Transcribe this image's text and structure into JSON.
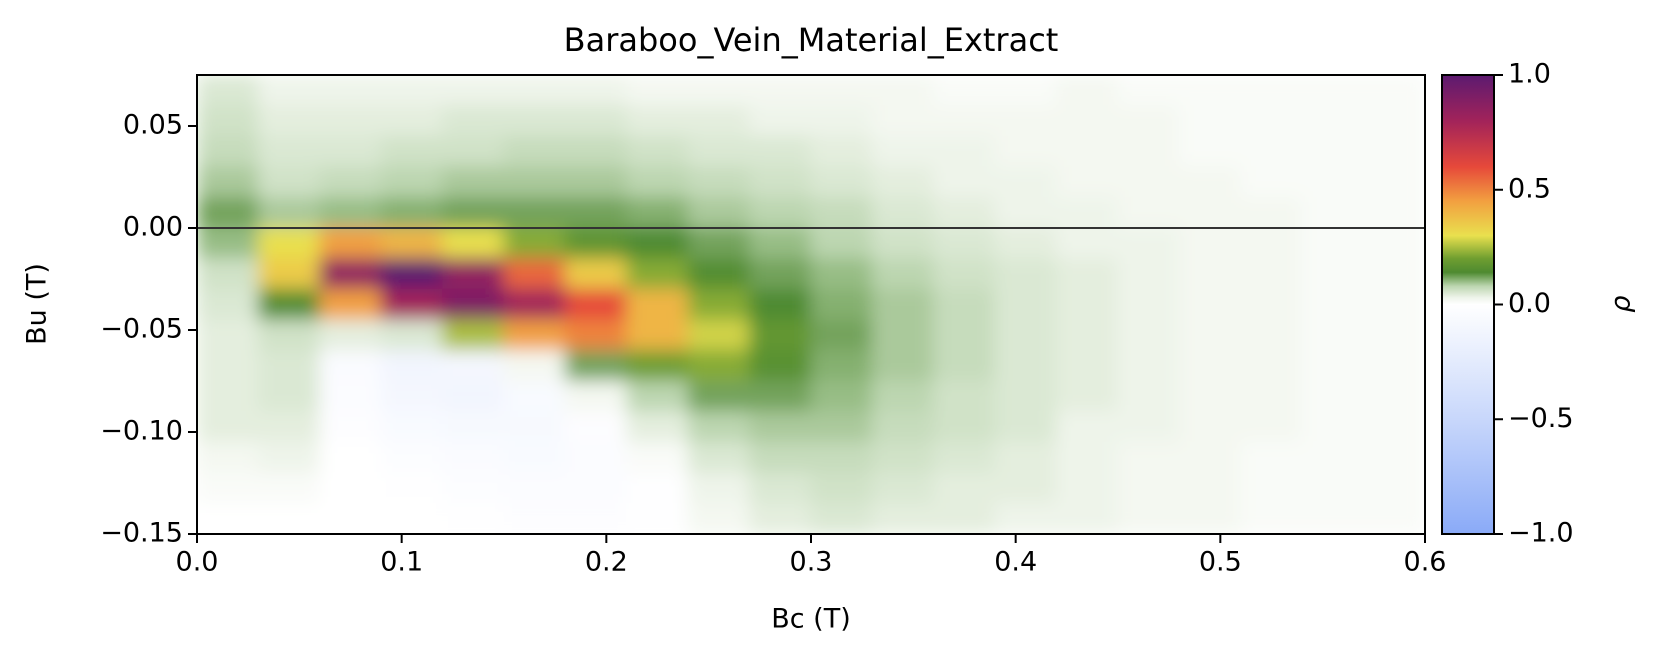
{
  "chart_data": {
    "type": "heatmap",
    "title": "Baraboo_Vein_Material_Extract",
    "x_label": "Bc (T)",
    "y_label": "Bu (T)",
    "colorbar_label": "ρ",
    "xlim": [
      0,
      0.6
    ],
    "ylim": [
      -0.15,
      0.075
    ],
    "clim": [
      -1,
      1
    ],
    "xticks": [
      {
        "value": 0,
        "label": "0.0"
      },
      0.1,
      0.2,
      0.3,
      0.4,
      0.5,
      0.6
    ],
    "yticks": [
      0.05,
      {
        "value": 0,
        "label": "0.00"
      },
      {
        "value": -0.05,
        "label": "−0.05"
      },
      {
        "value": -0.1,
        "label": "−0.10"
      },
      {
        "value": -0.15,
        "label": "−0.15"
      }
    ],
    "cticks": [
      {
        "value": 1,
        "label": "1.0"
      },
      {
        "value": 0.5,
        "label": "0.5"
      },
      {
        "value": 0,
        "label": "0.0"
      },
      {
        "value": -0.5,
        "label": "−0.5"
      },
      {
        "value": -1,
        "label": "−1.0"
      }
    ],
    "hline": 0,
    "colorscale": [
      [
        -1,
        "#8aaaf7"
      ],
      [
        -0.5,
        "#c8d7fb"
      ],
      [
        0,
        "#ffffff"
      ],
      [
        0.03,
        "#eef4ea"
      ],
      [
        0.08,
        "#bcd6b0"
      ],
      [
        0.14,
        "#4e8a30"
      ],
      [
        0.2,
        "#6f9e30"
      ],
      [
        0.3,
        "#e9e04e"
      ],
      [
        0.45,
        "#f2a040"
      ],
      [
        0.6,
        "#e6493a"
      ],
      [
        0.8,
        "#a2235a"
      ],
      [
        1,
        "#5c1a70"
      ]
    ],
    "xbins": [
      0,
      0.03,
      0.06,
      0.09,
      0.12,
      0.15,
      0.18,
      0.21,
      0.24,
      0.27,
      0.3,
      0.33,
      0.36,
      0.39,
      0.42,
      0.45,
      0.48,
      0.51,
      0.54,
      0.57,
      0.6
    ],
    "ybins": [
      0.075,
      0.06,
      0.045,
      0.03,
      0.015,
      0,
      -0.015,
      -0.03,
      -0.045,
      -0.06,
      -0.075,
      -0.09,
      -0.105,
      -0.12,
      -0.135,
      -0.15
    ],
    "z": [
      [
        0.05,
        0.03,
        0.03,
        0.03,
        0.03,
        0.03,
        0.03,
        0.02,
        0.02,
        0.02,
        0.02,
        0.02,
        0.01,
        0.01,
        0.02,
        0.01,
        0.01,
        0.01,
        0.01,
        0.01
      ],
      [
        0.06,
        0.04,
        0.04,
        0.04,
        0.05,
        0.05,
        0.05,
        0.04,
        0.04,
        0.03,
        0.03,
        0.02,
        0.02,
        0.02,
        0.02,
        0.02,
        0.01,
        0.01,
        0.01,
        0.01
      ],
      [
        0.07,
        0.05,
        0.05,
        0.06,
        0.06,
        0.07,
        0.07,
        0.06,
        0.05,
        0.05,
        0.04,
        0.03,
        0.03,
        0.02,
        0.02,
        0.02,
        0.01,
        0.01,
        0.01,
        0.01
      ],
      [
        0.09,
        0.06,
        0.07,
        0.08,
        0.09,
        0.09,
        0.09,
        0.08,
        0.07,
        0.06,
        0.05,
        0.04,
        0.03,
        0.03,
        0.02,
        0.02,
        0.02,
        0.01,
        0.01,
        0.01
      ],
      [
        0.12,
        0.09,
        0.1,
        0.11,
        0.12,
        0.12,
        0.12,
        0.11,
        0.09,
        0.08,
        0.07,
        0.05,
        0.04,
        0.03,
        0.03,
        0.02,
        0.02,
        0.02,
        0.01,
        0.01
      ],
      [
        0.1,
        0.3,
        0.45,
        0.4,
        0.3,
        0.22,
        0.17,
        0.14,
        0.12,
        0.1,
        0.08,
        0.06,
        0.05,
        0.04,
        0.03,
        0.03,
        0.02,
        0.02,
        0.01,
        0.01
      ],
      [
        0.06,
        0.35,
        0.85,
        1.0,
        0.85,
        0.55,
        0.35,
        0.22,
        0.15,
        0.12,
        0.1,
        0.08,
        0.06,
        0.05,
        0.04,
        0.03,
        0.02,
        0.02,
        0.01,
        0.01
      ],
      [
        0.05,
        0.15,
        0.45,
        0.8,
        0.9,
        0.8,
        0.6,
        0.4,
        0.22,
        0.14,
        0.11,
        0.09,
        0.07,
        0.05,
        0.04,
        0.03,
        0.02,
        0.02,
        0.01,
        0.01
      ],
      [
        0.04,
        0.06,
        0.04,
        0.05,
        0.25,
        0.45,
        0.5,
        0.4,
        0.28,
        0.18,
        0.12,
        0.09,
        0.07,
        0.05,
        0.04,
        0.03,
        0.02,
        0.02,
        0.01,
        0.01
      ],
      [
        0.04,
        0.05,
        -0.05,
        -0.12,
        -0.1,
        0.02,
        0.12,
        0.2,
        0.22,
        0.16,
        0.11,
        0.09,
        0.07,
        0.05,
        0.04,
        0.03,
        0.02,
        0.02,
        0.01,
        0.01
      ],
      [
        0.04,
        0.05,
        -0.04,
        -0.1,
        -0.12,
        -0.06,
        0.02,
        0.08,
        0.12,
        0.12,
        0.1,
        0.08,
        0.06,
        0.05,
        0.04,
        0.03,
        0.02,
        0.02,
        0.01,
        0.01
      ],
      [
        0.04,
        0.04,
        -0.02,
        -0.06,
        -0.08,
        -0.07,
        -0.02,
        0.04,
        0.08,
        0.09,
        0.09,
        0.07,
        0.06,
        0.05,
        0.03,
        0.03,
        0.02,
        0.02,
        0.01,
        0.01
      ],
      [
        0.02,
        0.03,
        0.0,
        -0.03,
        -0.05,
        -0.06,
        -0.04,
        0.01,
        0.05,
        0.07,
        0.07,
        0.06,
        0.05,
        0.04,
        0.03,
        0.02,
        0.02,
        0.01,
        0.01,
        0.01
      ],
      [
        0.01,
        0.01,
        0.0,
        -0.01,
        -0.03,
        -0.04,
        -0.04,
        -0.01,
        0.03,
        0.05,
        0.06,
        0.05,
        0.04,
        0.04,
        0.03,
        0.02,
        0.02,
        0.01,
        0.01,
        0.01
      ],
      [
        0.0,
        0.0,
        0.0,
        0.0,
        -0.01,
        -0.02,
        -0.02,
        -0.01,
        0.02,
        0.04,
        0.05,
        0.04,
        0.04,
        0.03,
        0.03,
        0.02,
        0.02,
        0.01,
        0.01,
        0.01
      ]
    ]
  }
}
